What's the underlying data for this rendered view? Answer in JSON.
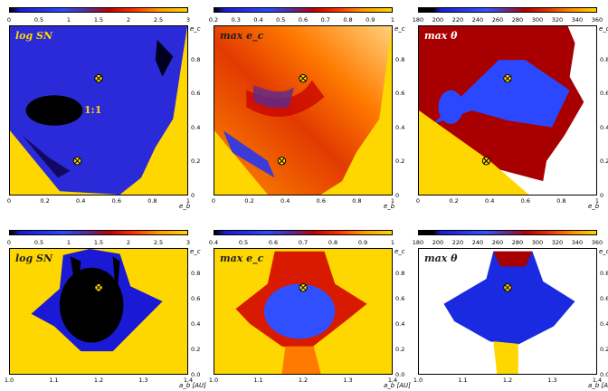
{
  "chart_data": [
    {
      "type": "heatmap",
      "panel_label": "log SN",
      "colorbar_ticks": [
        "0",
        "0.5",
        "1",
        "1.5",
        "2",
        "2.5",
        "3"
      ],
      "ylabel": "e_c",
      "xlabel": "e_b",
      "yticks": [
        "0.8",
        "0.6",
        "0.4",
        "0.2",
        "0"
      ],
      "xticks": [
        "0",
        "0.2",
        "0.4",
        "0.6",
        "0.8",
        "1"
      ],
      "xlim": [
        0,
        1
      ],
      "ylim": [
        0,
        1
      ],
      "annotation": "1:1",
      "markers": [
        {
          "x": 0.5,
          "y": 0.69,
          "symbol": "circled-x"
        },
        {
          "x": 0.38,
          "y": 0.2,
          "symbol": "circled-x"
        }
      ],
      "palette": [
        "#000000",
        "#0000cc",
        "#3355ff",
        "#7a2a80",
        "#cc0000",
        "#ff6600",
        "#ffdd00"
      ]
    },
    {
      "type": "heatmap",
      "panel_label": "max e_c",
      "colorbar_ticks": [
        "0.2",
        "0.3",
        "0.4",
        "0.5",
        "0.6",
        "0.7",
        "0.8",
        "0.9",
        "1"
      ],
      "ylabel": "e_c",
      "xlabel": "e_b",
      "yticks": [
        "0.8",
        "0.6",
        "0.4",
        "0.2",
        "0"
      ],
      "xticks": [
        "0",
        "0.2",
        "0.4",
        "0.6",
        "0.8",
        "1"
      ],
      "xlim": [
        0,
        1
      ],
      "ylim": [
        0,
        1
      ],
      "markers": [
        {
          "x": 0.5,
          "y": 0.69,
          "symbol": "circled-x"
        },
        {
          "x": 0.38,
          "y": 0.2,
          "symbol": "circled-x"
        }
      ],
      "palette": [
        "#000000",
        "#0000cc",
        "#3355ff",
        "#7a2a80",
        "#cc0000",
        "#ff6600",
        "#ffdd00"
      ]
    },
    {
      "type": "heatmap",
      "panel_label": "max θ",
      "colorbar_ticks": [
        "180",
        "200",
        "220",
        "240",
        "260",
        "280",
        "300",
        "320",
        "340",
        "360"
      ],
      "ylabel": "e_c",
      "xlabel": "e_b",
      "yticks": [
        "0.8",
        "0.6",
        "0.4",
        "0.2",
        "0"
      ],
      "xticks": [
        "0",
        "0.2",
        "0.4",
        "0.6",
        "0.8",
        "1"
      ],
      "xlim": [
        0,
        1
      ],
      "ylim": [
        0,
        1
      ],
      "markers": [
        {
          "x": 0.5,
          "y": 0.69,
          "symbol": "circled-x"
        },
        {
          "x": 0.38,
          "y": 0.2,
          "symbol": "circled-x"
        }
      ],
      "palette": [
        "#000000",
        "#0000cc",
        "#3355ff",
        "#7a2a80",
        "#cc0000",
        "#ff6600",
        "#ffdd00"
      ]
    },
    {
      "type": "heatmap",
      "panel_label": "log SN",
      "colorbar_ticks": [
        "0",
        "0.5",
        "1",
        "1.5",
        "2",
        "2.5",
        "3"
      ],
      "ylabel": "e_c",
      "xlabel": "a_b [AU]",
      "yticks": [
        "0.8",
        "0.6",
        "0.4",
        "0.2",
        "0.0"
      ],
      "xticks": [
        "1.0",
        "1.1",
        "1.2",
        "1.3",
        "1.4"
      ],
      "xlim": [
        1.0,
        1.4
      ],
      "ylim": [
        0,
        1
      ],
      "markers": [
        {
          "x": 1.2,
          "y": 0.69,
          "symbol": "circled-x"
        }
      ],
      "palette": [
        "#000000",
        "#0000cc",
        "#3355ff",
        "#7a2a80",
        "#cc0000",
        "#ff6600",
        "#ffdd00"
      ]
    },
    {
      "type": "heatmap",
      "panel_label": "max e_c",
      "colorbar_ticks": [
        "0.4",
        "0.5",
        "0.6",
        "0.7",
        "0.8",
        "0.9",
        "1"
      ],
      "ylabel": "e_c",
      "xlabel": "a_b [AU]",
      "yticks": [
        "0.8",
        "0.6",
        "0.4",
        "0.2",
        "0.0"
      ],
      "xticks": [
        "1.0",
        "1.1",
        "1.2",
        "1.3",
        "1.4"
      ],
      "xlim": [
        1.0,
        1.4
      ],
      "ylim": [
        0,
        1
      ],
      "markers": [
        {
          "x": 1.2,
          "y": 0.69,
          "symbol": "circled-x"
        }
      ],
      "palette": [
        "#000000",
        "#0000cc",
        "#3355ff",
        "#7a2a80",
        "#cc0000",
        "#ff6600",
        "#ffdd00"
      ]
    },
    {
      "type": "heatmap",
      "panel_label": "max θ",
      "colorbar_ticks": [
        "180",
        "200",
        "220",
        "240",
        "260",
        "280",
        "300",
        "320",
        "340",
        "360"
      ],
      "ylabel": "e_c",
      "xlabel": "a_b [AU]",
      "yticks": [
        "0.8",
        "0.6",
        "0.4",
        "0.2",
        "0.0"
      ],
      "xticks": [
        "1.0",
        "1.1",
        "1.2",
        "1.3",
        "1.4"
      ],
      "xlim": [
        1.0,
        1.4
      ],
      "ylim": [
        0,
        1
      ],
      "markers": [
        {
          "x": 1.2,
          "y": 0.69,
          "symbol": "circled-x"
        }
      ],
      "palette": [
        "#000000",
        "#0000cc",
        "#3355ff",
        "#7a2a80",
        "#cc0000",
        "#ff6600",
        "#ffdd00"
      ]
    }
  ]
}
